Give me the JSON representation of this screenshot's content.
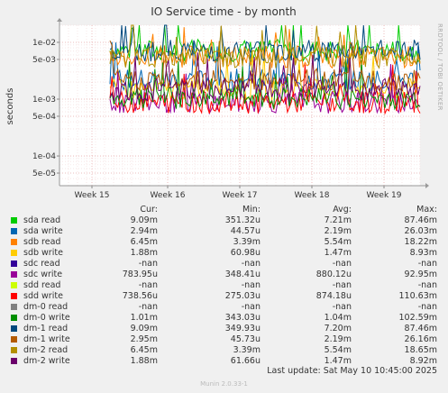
{
  "chart_data": {
    "type": "line",
    "title": "IO Service time - by month",
    "ylabel": "seconds",
    "yscale": "log",
    "ylim": [
      3e-05,
      0.02
    ],
    "y_ticks": [
      {
        "value": 5e-05,
        "label": "5e-05"
      },
      {
        "value": 0.0001,
        "label": "1e-04"
      },
      {
        "value": 0.0005,
        "label": "5e-04"
      },
      {
        "value": 0.001,
        "label": "1e-03"
      },
      {
        "value": 0.005,
        "label": "5e-03"
      },
      {
        "value": 0.01,
        "label": "1e-02"
      }
    ],
    "x_ticks": [
      {
        "pos": 0.09,
        "label": "Week 15"
      },
      {
        "pos": 0.3,
        "label": "Week 16"
      },
      {
        "pos": 0.5,
        "label": "Week 17"
      },
      {
        "pos": 0.7,
        "label": "Week 18"
      },
      {
        "pos": 0.9,
        "label": "Week 19"
      }
    ],
    "grid": true,
    "side_label": "RRDTOOL / TOBI OETIKER",
    "columns": [
      "Cur:",
      "Min:",
      "Avg:",
      "Max:"
    ],
    "series": [
      {
        "name": "sda read",
        "color": "#00cc00",
        "cur": "9.09m",
        "min": "351.32u",
        "avg": "7.21m",
        "max": "87.46m"
      },
      {
        "name": "sda write",
        "color": "#0066b3",
        "cur": "2.94m",
        "min": "44.57u",
        "avg": "2.19m",
        "max": "26.03m"
      },
      {
        "name": "sdb read",
        "color": "#ff8000",
        "cur": "6.45m",
        "min": "3.39m",
        "avg": "5.54m",
        "max": "18.22m"
      },
      {
        "name": "sdb write",
        "color": "#ffcc00",
        "cur": "1.88m",
        "min": "60.98u",
        "avg": "1.47m",
        "max": "8.93m"
      },
      {
        "name": "sdc read",
        "color": "#330099",
        "cur": "-nan",
        "min": "-nan",
        "avg": "-nan",
        "max": "-nan"
      },
      {
        "name": "sdc write",
        "color": "#990099",
        "cur": "783.95u",
        "min": "348.41u",
        "avg": "880.12u",
        "max": "92.95m"
      },
      {
        "name": "sdd read",
        "color": "#ccff00",
        "cur": "-nan",
        "min": "-nan",
        "avg": "-nan",
        "max": "-nan"
      },
      {
        "name": "sdd write",
        "color": "#ff0000",
        "cur": "738.56u",
        "min": "275.03u",
        "avg": "874.18u",
        "max": "110.63m"
      },
      {
        "name": "dm-0 read",
        "color": "#808080",
        "cur": "-nan",
        "min": "-nan",
        "avg": "-nan",
        "max": "-nan"
      },
      {
        "name": "dm-0 write",
        "color": "#008f00",
        "cur": "1.01m",
        "min": "343.03u",
        "avg": "1.04m",
        "max": "102.59m"
      },
      {
        "name": "dm-1 read",
        "color": "#00487d",
        "cur": "9.09m",
        "min": "349.93u",
        "avg": "7.20m",
        "max": "87.46m"
      },
      {
        "name": "dm-1 write",
        "color": "#b35a00",
        "cur": "2.95m",
        "min": "45.73u",
        "avg": "2.19m",
        "max": "26.16m"
      },
      {
        "name": "dm-2 read",
        "color": "#b38f00",
        "cur": "6.45m",
        "min": "3.39m",
        "avg": "5.54m",
        "max": "18.65m"
      },
      {
        "name": "dm-2 write",
        "color": "#6b006b",
        "cur": "1.88m",
        "min": "61.66u",
        "avg": "1.47m",
        "max": "8.92m"
      }
    ]
  },
  "footer": {
    "last_update": "Last update:  Sat May 10 10:45:00 2025",
    "munin": "Munin 2.0.33-1"
  }
}
